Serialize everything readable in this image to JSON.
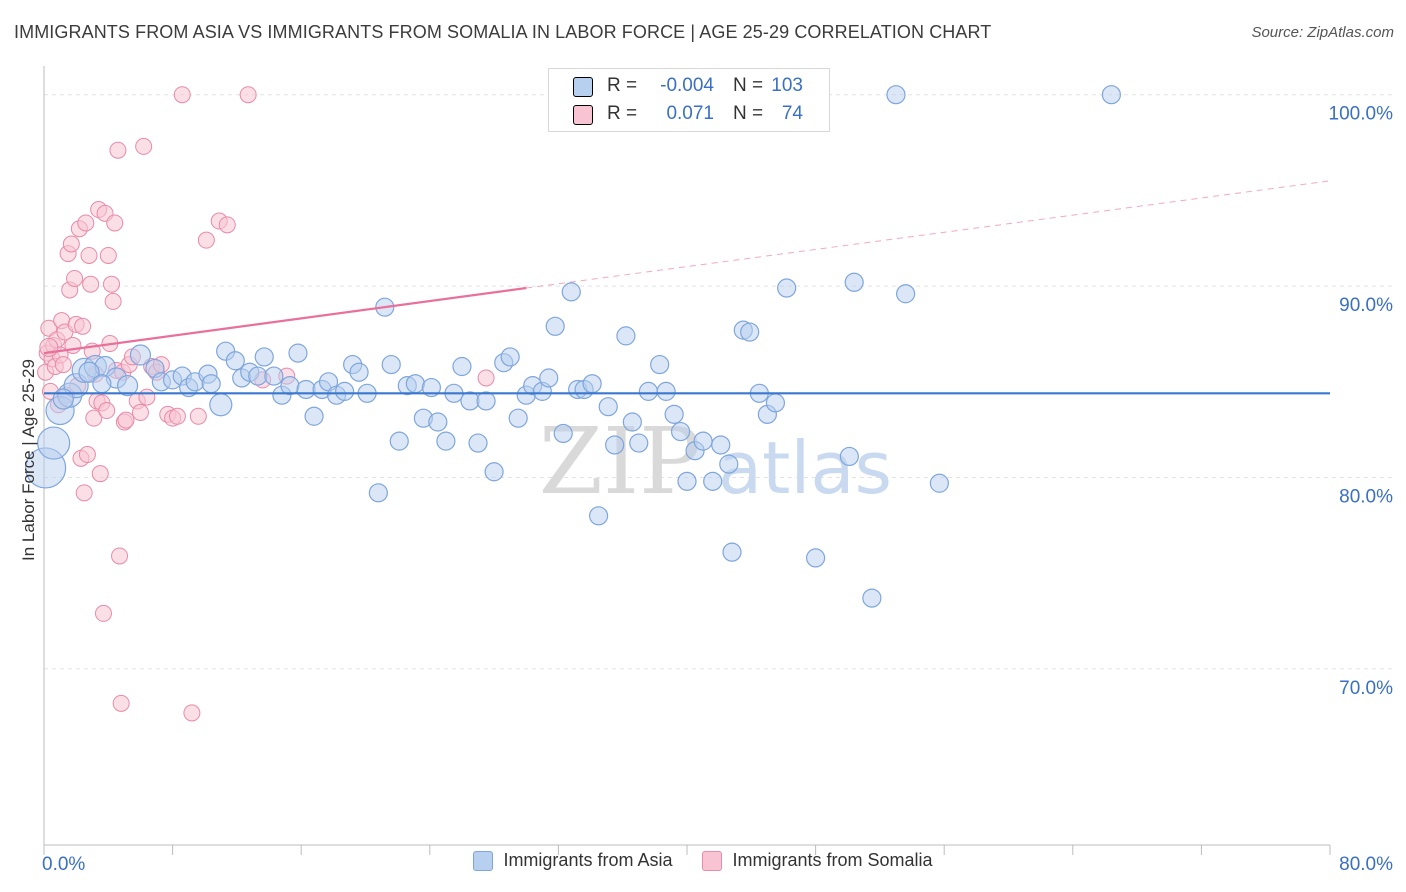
{
  "title": "IMMIGRANTS FROM ASIA VS IMMIGRANTS FROM SOMALIA IN LABOR FORCE | AGE 25-29 CORRELATION CHART",
  "source": "Source: ZipAtlas.com",
  "watermark": {
    "zip": "ZIP",
    "atlas": "atlas"
  },
  "stats": {
    "r_label": "R =",
    "n_label": "N =",
    "asia": {
      "r": "-0.004",
      "n": "103"
    },
    "somalia": {
      "r": "0.071",
      "n": "74"
    }
  },
  "legend": {
    "asia": "Immigrants from Asia",
    "somalia": "Immigrants from Somalia"
  },
  "colors": {
    "asia_fill": "#b8d0f0",
    "asia_stroke": "#7fa6dc",
    "asia_line": "#3a78d0",
    "somalia_fill": "#f8c4d4",
    "somalia_stroke": "#e88aa8",
    "somalia_line": "#e8709a",
    "tick_label": "#3a70c4"
  },
  "chart_data": {
    "type": "scatter",
    "title": "IMMIGRANTS FROM ASIA VS IMMIGRANTS FROM SOMALIA IN LABOR FORCE | AGE 25-29 CORRELATION CHART",
    "xlabel": "",
    "ylabel": "In Labor Force | Age 25-29",
    "xlim": [
      0,
      80
    ],
    "ylim": [
      60.8,
      101.5
    ],
    "x_tick_labels": [
      "0.0%",
      "80.0%"
    ],
    "y_ticks": [
      70,
      80,
      90,
      100
    ],
    "y_tick_labels": [
      "70.0%",
      "80.0%",
      "90.0%",
      "100.0%"
    ],
    "grid": true,
    "series": [
      {
        "name": "Immigrants from Asia",
        "trend": {
          "x": [
            0,
            80
          ],
          "y": [
            84.4,
            84.4
          ],
          "style": "solid"
        },
        "points": [
          [
            0.1,
            80.5,
            20
          ],
          [
            0.6,
            81.8,
            16
          ],
          [
            1.0,
            83.5,
            14
          ],
          [
            1.6,
            84.3,
            12
          ],
          [
            2.0,
            84.8,
            12
          ],
          [
            2.5,
            85.6,
            12
          ],
          [
            3.2,
            85.8,
            11
          ],
          [
            3.8,
            85.8,
            10
          ],
          [
            4.5,
            85.2,
            10
          ],
          [
            5.2,
            84.8,
            10
          ],
          [
            6.0,
            86.4,
            10
          ],
          [
            6.9,
            85.7,
            9
          ],
          [
            7.3,
            85.0,
            9
          ],
          [
            8.0,
            85.1,
            9
          ],
          [
            8.6,
            85.3,
            9
          ],
          [
            9.0,
            84.7,
            9
          ],
          [
            9.4,
            85.0,
            9
          ],
          [
            10.2,
            85.4,
            9
          ],
          [
            10.4,
            84.9,
            9
          ],
          [
            11.0,
            83.8,
            11
          ],
          [
            11.3,
            86.6,
            9
          ],
          [
            11.9,
            86.1,
            9
          ],
          [
            12.3,
            85.2,
            9
          ],
          [
            12.8,
            85.5,
            9
          ],
          [
            13.3,
            85.3,
            9
          ],
          [
            13.7,
            86.3,
            9
          ],
          [
            14.3,
            85.3,
            9
          ],
          [
            14.8,
            84.3,
            9
          ],
          [
            15.3,
            84.8,
            9
          ],
          [
            15.8,
            86.5,
            9
          ],
          [
            16.3,
            84.6,
            9
          ],
          [
            16.8,
            83.2,
            9
          ],
          [
            17.3,
            84.6,
            9
          ],
          [
            17.7,
            85.0,
            9
          ],
          [
            18.2,
            84.3,
            9
          ],
          [
            18.7,
            84.5,
            9
          ],
          [
            19.2,
            85.9,
            9
          ],
          [
            19.6,
            85.5,
            9
          ],
          [
            20.1,
            84.4,
            9
          ],
          [
            20.8,
            79.2,
            9
          ],
          [
            21.2,
            88.9,
            9
          ],
          [
            21.6,
            85.9,
            9
          ],
          [
            22.1,
            81.9,
            9
          ],
          [
            22.6,
            84.8,
            9
          ],
          [
            23.1,
            84.9,
            9
          ],
          [
            23.6,
            83.1,
            9
          ],
          [
            24.1,
            84.7,
            9
          ],
          [
            24.5,
            82.9,
            9
          ],
          [
            25.0,
            81.9,
            9
          ],
          [
            25.5,
            84.4,
            9
          ],
          [
            26.0,
            85.8,
            9
          ],
          [
            26.5,
            84.0,
            9
          ],
          [
            27.0,
            81.8,
            9
          ],
          [
            27.5,
            84.0,
            9
          ],
          [
            28.0,
            80.3,
            9
          ],
          [
            28.6,
            86.0,
            9
          ],
          [
            29.0,
            86.3,
            9
          ],
          [
            29.5,
            83.1,
            9
          ],
          [
            30.0,
            84.3,
            9
          ],
          [
            30.4,
            84.8,
            9
          ],
          [
            31.0,
            84.5,
            9
          ],
          [
            31.4,
            85.2,
            9
          ],
          [
            31.8,
            87.9,
            9
          ],
          [
            32.3,
            82.3,
            9
          ],
          [
            32.8,
            89.7,
            9
          ],
          [
            33.2,
            84.6,
            9
          ],
          [
            33.6,
            84.6,
            9
          ],
          [
            34.1,
            84.9,
            9
          ],
          [
            34.5,
            78.0,
            9
          ],
          [
            35.1,
            83.7,
            9
          ],
          [
            35.5,
            81.7,
            9
          ],
          [
            36.2,
            87.4,
            9
          ],
          [
            36.6,
            82.9,
            9
          ],
          [
            37.0,
            81.8,
            9
          ],
          [
            37.6,
            84.5,
            9
          ],
          [
            38.3,
            85.9,
            9
          ],
          [
            38.7,
            84.5,
            9
          ],
          [
            39.2,
            83.3,
            9
          ],
          [
            39.6,
            82.4,
            9
          ],
          [
            40.0,
            79.8,
            9
          ],
          [
            40.5,
            81.4,
            9
          ],
          [
            41.0,
            81.9,
            9
          ],
          [
            41.6,
            79.8,
            9
          ],
          [
            42.1,
            81.7,
            9
          ],
          [
            42.6,
            80.7,
            9
          ],
          [
            42.8,
            76.1,
            9
          ],
          [
            43.5,
            87.7,
            9
          ],
          [
            43.9,
            87.6,
            9
          ],
          [
            44.5,
            84.4,
            9
          ],
          [
            45.0,
            83.3,
            9
          ],
          [
            45.5,
            83.9,
            9
          ],
          [
            46.2,
            89.9,
            9
          ],
          [
            48.0,
            75.8,
            9
          ],
          [
            50.1,
            81.1,
            9
          ],
          [
            50.4,
            90.2,
            9
          ],
          [
            51.5,
            73.7,
            9
          ],
          [
            53.6,
            89.6,
            9
          ],
          [
            55.7,
            79.7,
            9
          ],
          [
            53.0,
            100.0,
            9
          ],
          [
            66.4,
            100.0,
            9
          ],
          [
            1.2,
            84.1,
            10
          ],
          [
            2.8,
            85.5,
            10
          ],
          [
            3.6,
            84.9,
            9
          ]
        ]
      },
      {
        "name": "Immigrants from Somalia",
        "trend": {
          "x": [
            0,
            30
          ],
          "y": [
            86.5,
            89.9
          ],
          "style": "solid",
          "extended": {
            "x": [
              30,
              80
            ],
            "y": [
              89.9,
              95.5
            ],
            "style": "dashed"
          }
        },
        "points": [
          [
            0.1,
            85.5,
            8
          ],
          [
            0.2,
            86.5,
            8
          ],
          [
            0.3,
            87.8,
            8
          ],
          [
            0.4,
            84.5,
            8
          ],
          [
            0.5,
            86.2,
            8
          ],
          [
            0.6,
            86.9,
            8
          ],
          [
            0.7,
            85.8,
            8
          ],
          [
            0.8,
            87.2,
            8
          ],
          [
            0.9,
            83.8,
            8
          ],
          [
            1.0,
            86.4,
            8
          ],
          [
            1.1,
            88.2,
            8
          ],
          [
            1.2,
            85.9,
            8
          ],
          [
            1.3,
            87.6,
            8
          ],
          [
            1.4,
            84.3,
            8
          ],
          [
            1.5,
            91.7,
            8
          ],
          [
            1.6,
            89.8,
            8
          ],
          [
            1.7,
            92.2,
            8
          ],
          [
            1.8,
            86.9,
            8
          ],
          [
            1.9,
            90.4,
            8
          ],
          [
            2.0,
            88.0,
            8
          ],
          [
            2.1,
            84.8,
            8
          ],
          [
            2.2,
            93.0,
            8
          ],
          [
            2.3,
            81.0,
            8
          ],
          [
            2.4,
            87.9,
            8
          ],
          [
            2.5,
            79.2,
            8
          ],
          [
            2.6,
            93.3,
            8
          ],
          [
            2.7,
            81.2,
            8
          ],
          [
            2.8,
            91.6,
            8
          ],
          [
            2.9,
            90.1,
            8
          ],
          [
            3.0,
            86.6,
            8
          ],
          [
            3.1,
            83.1,
            8
          ],
          [
            3.2,
            85.4,
            8
          ],
          [
            3.3,
            84.0,
            8
          ],
          [
            3.4,
            94.0,
            8
          ],
          [
            3.5,
            80.2,
            8
          ],
          [
            3.6,
            83.9,
            8
          ],
          [
            3.7,
            72.9,
            8
          ],
          [
            3.8,
            93.8,
            8
          ],
          [
            3.9,
            83.5,
            8
          ],
          [
            4.0,
            91.6,
            8
          ],
          [
            4.1,
            87.0,
            8
          ],
          [
            4.2,
            90.1,
            8
          ],
          [
            4.3,
            89.2,
            8
          ],
          [
            4.4,
            93.3,
            8
          ],
          [
            4.5,
            85.6,
            8
          ],
          [
            4.6,
            97.1,
            8
          ],
          [
            4.7,
            75.9,
            8
          ],
          [
            4.8,
            68.2,
            8
          ],
          [
            4.9,
            85.5,
            8
          ],
          [
            5.0,
            82.9,
            8
          ],
          [
            5.1,
            83.0,
            8
          ],
          [
            5.3,
            85.9,
            8
          ],
          [
            5.5,
            86.3,
            8
          ],
          [
            5.8,
            84.0,
            8
          ],
          [
            6.0,
            83.4,
            8
          ],
          [
            6.2,
            97.3,
            8
          ],
          [
            6.4,
            84.2,
            8
          ],
          [
            6.7,
            85.8,
            8
          ],
          [
            7.0,
            85.5,
            8
          ],
          [
            7.3,
            85.9,
            8
          ],
          [
            7.7,
            83.3,
            8
          ],
          [
            8.0,
            83.1,
            8
          ],
          [
            8.3,
            83.2,
            8
          ],
          [
            8.6,
            100.0,
            8
          ],
          [
            9.2,
            67.7,
            8
          ],
          [
            9.6,
            83.2,
            8
          ],
          [
            10.1,
            92.4,
            8
          ],
          [
            10.9,
            93.4,
            8
          ],
          [
            11.4,
            93.2,
            8
          ],
          [
            12.7,
            100.0,
            8
          ],
          [
            13.6,
            85.1,
            8
          ],
          [
            15.1,
            85.3,
            8
          ],
          [
            27.5,
            85.2,
            8
          ],
          [
            0.3,
            86.8,
            9
          ]
        ]
      }
    ]
  }
}
